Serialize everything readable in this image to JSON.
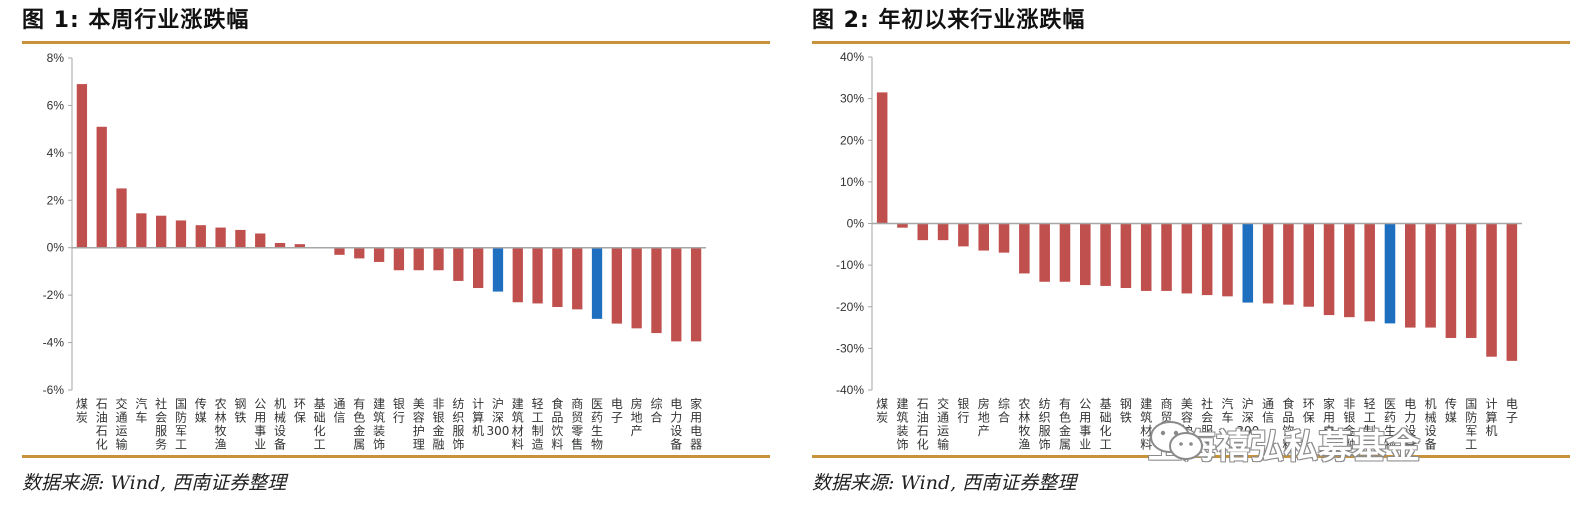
{
  "colors": {
    "bar": "#c0504d",
    "highlight": "#1f6fc0",
    "rule": "#c8923a",
    "axis": "#a6a6a6"
  },
  "watermark": {
    "text": "上海禧弘私募基金",
    "icon": "wechat-icon"
  },
  "chart_data": [
    {
      "type": "bar",
      "title": "图 1:  本周行业涨跌幅",
      "source": "数据来源:  Wind,  西南证券整理",
      "ylim": [
        -6,
        8
      ],
      "yticks": [
        "8%",
        "6%",
        "4%",
        "2%",
        "0%",
        "-2%",
        "-4%",
        "-6%"
      ],
      "ytick_values": [
        8,
        6,
        4,
        2,
        0,
        -2,
        -4,
        -6
      ],
      "categories": [
        "煤炭",
        "石油石化",
        "交通运输",
        "汽车",
        "社会服务",
        "国防军工",
        "传媒",
        "农林牧渔",
        "钢铁",
        "公用事业",
        "机械设备",
        "环保",
        "基础化工",
        "通信",
        "有色金属",
        "建筑装饰",
        "银行",
        "美容护理",
        "非银金融",
        "纺织服饰",
        "计算机",
        "沪深300",
        "建筑材料",
        "轻工制造",
        "食品饮料",
        "商贸零售",
        "医药生物",
        "电子",
        "房地产",
        "综合",
        "电力设备",
        "家用电器"
      ],
      "values": [
        6.9,
        5.1,
        2.5,
        1.45,
        1.35,
        1.15,
        0.95,
        0.85,
        0.75,
        0.6,
        0.2,
        0.15,
        0.0,
        -0.3,
        -0.45,
        -0.6,
        -0.95,
        -0.95,
        -0.95,
        -1.4,
        -1.7,
        -1.85,
        -2.3,
        -2.35,
        -2.5,
        -2.6,
        -3.0,
        -3.2,
        -3.4,
        -3.6,
        -3.95,
        -3.95
      ],
      "highlight": [
        "沪深300",
        "医药生物"
      ],
      "grid": false
    },
    {
      "type": "bar",
      "title": "图 2:  年初以来行业涨跌幅",
      "source": "数据来源:  Wind,  西南证券整理",
      "ylim": [
        -40,
        40
      ],
      "yticks": [
        "40%",
        "30%",
        "20%",
        "10%",
        "0%",
        "-10%",
        "-20%",
        "-30%",
        "-40%"
      ],
      "ytick_values": [
        40,
        30,
        20,
        10,
        0,
        -10,
        -20,
        -30,
        -40
      ],
      "categories": [
        "煤炭",
        "建筑装饰",
        "石油石化",
        "交通运输",
        "银行",
        "房地产",
        "综合",
        "农林牧渔",
        "纺织服饰",
        "有色金属",
        "公用事业",
        "基础化工",
        "钢铁",
        "建筑材料",
        "商贸零售",
        "美容护理",
        "社会服务",
        "汽车",
        "沪深300",
        "通信",
        "食品饮料",
        "环保",
        "家用电器",
        "非银金融",
        "轻工制造",
        "医药生物",
        "电力设备",
        "机械设备",
        "传媒",
        "国防军工",
        "计算机",
        "电子"
      ],
      "values": [
        31.5,
        -1.0,
        -4.0,
        -4.0,
        -5.5,
        -6.5,
        -7.0,
        -12.0,
        -14.0,
        -14.0,
        -14.8,
        -15.0,
        -15.5,
        -16.2,
        -16.2,
        -16.8,
        -17.2,
        -17.5,
        -19.0,
        -19.2,
        -19.5,
        -20.0,
        -22.0,
        -22.5,
        -23.5,
        -24.0,
        -25.0,
        -25.0,
        -27.5,
        -27.5,
        -32.0,
        -33.0
      ],
      "highlight": [
        "沪深300",
        "医药生物"
      ],
      "grid": false
    }
  ]
}
